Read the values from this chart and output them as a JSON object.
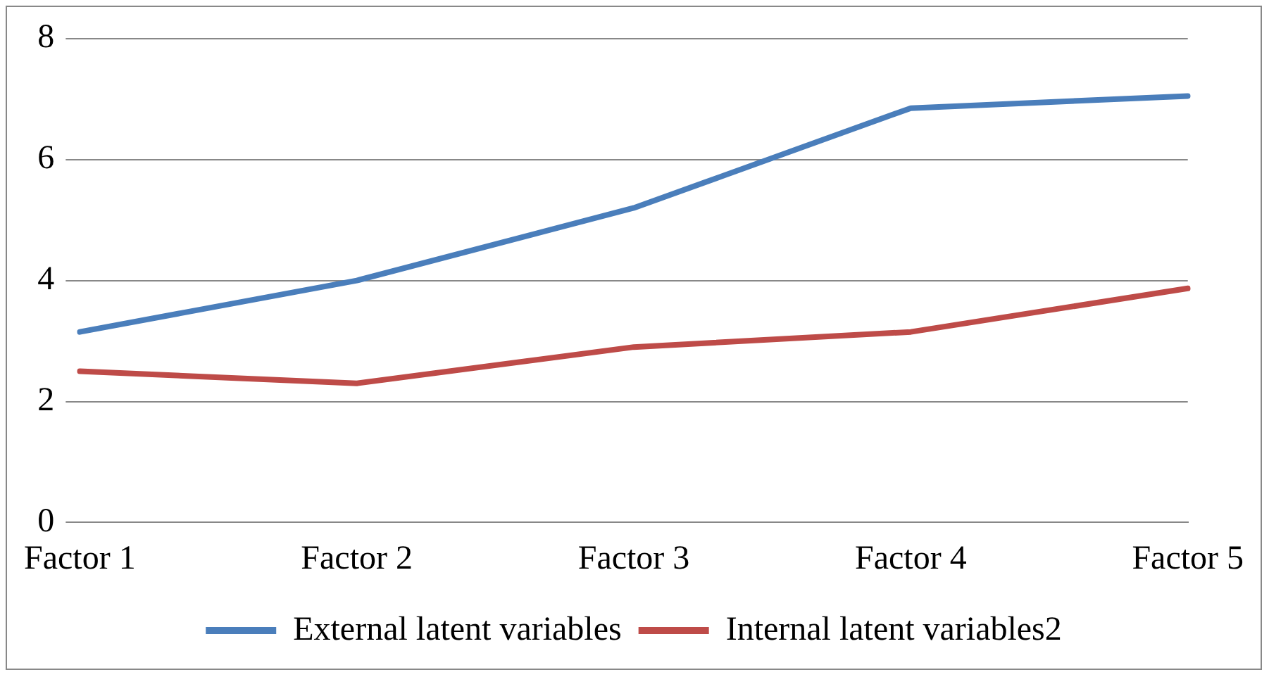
{
  "chart_data": {
    "type": "line",
    "categories": [
      "Factor 1",
      "Factor 2",
      "Factor 3",
      "Factor 4",
      "Factor 5"
    ],
    "series": [
      {
        "name": "External latent variables",
        "color": "#4a7ebb",
        "values": [
          3.15,
          4.0,
          5.2,
          6.85,
          7.05
        ]
      },
      {
        "name": "Internal latent variables2",
        "color": "#be4b48",
        "values": [
          2.5,
          2.3,
          2.9,
          3.15,
          3.87
        ]
      }
    ],
    "ylim": [
      0,
      8
    ],
    "yticks": [
      0,
      2,
      4,
      6,
      8
    ],
    "grid": "y",
    "legend": "bottom",
    "marker": "none",
    "line_style": "solid"
  }
}
